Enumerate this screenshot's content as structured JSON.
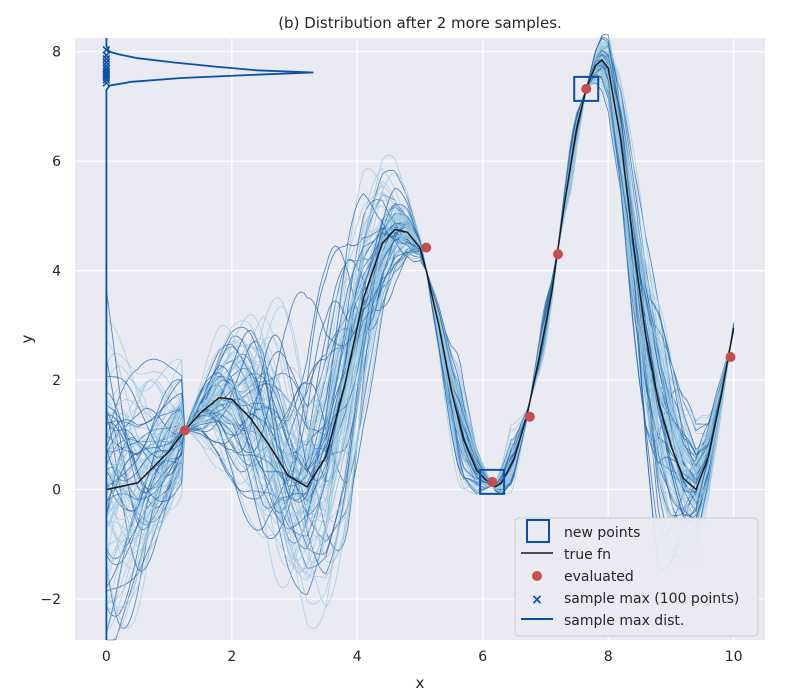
{
  "chart_data": {
    "type": "line",
    "title": "(b) Distribution after 2 more samples.",
    "xlabel": "x",
    "ylabel": "y",
    "xlim": [
      -0.5,
      10.5
    ],
    "ylim": [
      -2.75,
      8.25
    ],
    "xticks": [
      0,
      2,
      4,
      6,
      8,
      10
    ],
    "yticks": [
      -2,
      0,
      2,
      4,
      6,
      8
    ],
    "xtick_labels": [
      "0",
      "2",
      "4",
      "6",
      "8",
      "10"
    ],
    "ytick_labels": [
      "−2",
      "0",
      "2",
      "4",
      "6",
      "8"
    ],
    "grid": true,
    "legend_position": "lower-right",
    "colors": {
      "background": "#eaeaf2",
      "grid": "#ffffff",
      "true_fn": "#1a1a1a",
      "evaluated": "#c44e52",
      "new_points": "#0b4fa8",
      "samples_dark": "#2166ac",
      "samples_light": "#9ecae1"
    },
    "true_fn": {
      "name": "true fn",
      "x": [
        0,
        0.5,
        1.0,
        1.25,
        1.5,
        1.8,
        2.0,
        2.3,
        2.6,
        2.9,
        3.2,
        3.5,
        3.8,
        4.1,
        4.4,
        4.6,
        4.8,
        5.0,
        5.1,
        5.3,
        5.5,
        5.7,
        5.9,
        6.1,
        6.2,
        6.3,
        6.5,
        6.7,
        6.9,
        7.1,
        7.3,
        7.5,
        7.65,
        7.8,
        7.9,
        8.0,
        8.2,
        8.4,
        8.6,
        8.8,
        9.0,
        9.2,
        9.4,
        9.6,
        9.8,
        10.0
      ],
      "y": [
        0.0,
        0.12,
        0.7,
        1.08,
        1.4,
        1.68,
        1.65,
        1.3,
        0.8,
        0.25,
        0.05,
        0.6,
        1.9,
        3.5,
        4.5,
        4.75,
        4.7,
        4.42,
        4.0,
        3.0,
        1.8,
        0.9,
        0.35,
        0.12,
        0.05,
        0.12,
        0.55,
        1.33,
        2.4,
        3.6,
        5.2,
        6.6,
        7.32,
        7.75,
        7.85,
        7.7,
        6.4,
        4.5,
        2.8,
        1.6,
        0.8,
        0.2,
        0.0,
        0.6,
        1.7,
        2.95
      ]
    },
    "evaluated": {
      "name": "evaluated",
      "x": [
        1.25,
        5.1,
        6.15,
        6.75,
        7.2,
        7.65,
        9.95
      ],
      "y": [
        1.08,
        4.42,
        0.14,
        1.33,
        4.3,
        7.32,
        2.42
      ]
    },
    "new_points": {
      "name": "new points",
      "x": [
        6.15,
        7.65
      ],
      "y": [
        0.14,
        7.32
      ]
    },
    "sample_max": {
      "name": "sample max (100 points)",
      "x": [
        0,
        0,
        0,
        0,
        0,
        0,
        0,
        0,
        0,
        0,
        0,
        0
      ],
      "y": [
        8.05,
        7.95,
        7.88,
        7.82,
        7.76,
        7.7,
        7.66,
        7.62,
        7.58,
        7.55,
        7.5,
        7.45
      ]
    },
    "sample_max_dist": {
      "name": "sample max dist.",
      "y": [
        -2.75,
        7.3,
        7.38,
        7.45,
        7.52,
        7.58,
        7.62,
        7.66,
        7.72,
        7.8,
        7.88,
        7.95,
        8.0,
        8.1,
        8.25
      ],
      "density": [
        0.0,
        0.0,
        0.05,
        0.4,
        1.2,
        2.4,
        3.3,
        2.4,
        1.8,
        1.1,
        0.5,
        0.2,
        0.05,
        0.0,
        0.0
      ]
    },
    "legend": [
      "new points",
      "true fn",
      "evaluated",
      "sample max (100 points)",
      "sample max dist."
    ],
    "posterior_samples": {
      "count": 100
    }
  }
}
